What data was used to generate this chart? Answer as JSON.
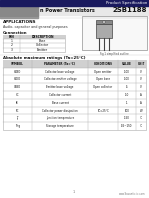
{
  "title_right": "Product Specification",
  "part_number": "2SB1188",
  "applications_title": "APPLICATIONS",
  "applications_text": "Audio, capacitor and general purposes",
  "pin_table_title": "Connection",
  "pin_headers": [
    "PIN",
    "DESCRIPTION"
  ],
  "pin_rows": [
    [
      "1",
      "Base"
    ],
    [
      "2",
      "Collector"
    ],
    [
      "3",
      "Emitter"
    ]
  ],
  "abs_table_title": "Absolute maximum ratings (Ta=25°C)",
  "abs_headers": [
    "SYMBOL",
    "PARAMETER (Ta=°C)",
    "CONDITIONS",
    "VALUE",
    "UNIT"
  ],
  "abs_rows": [
    [
      "VCBO",
      "Collector-base voltage",
      "Open emitter",
      "-100",
      "V"
    ],
    [
      "VCEO",
      "Collector-emitter voltage",
      "Open base",
      "-100",
      "V"
    ],
    [
      "VEBO",
      "Emitter-base voltage",
      "Open collector",
      "-5",
      "V"
    ],
    [
      "IC",
      "Collector current",
      "",
      "-10",
      "A"
    ],
    [
      "IB",
      "Base current",
      "",
      "-1",
      "A"
    ],
    [
      "PC",
      "Collector power dissipation",
      "TC=25°C",
      "100",
      "W"
    ],
    [
      "TJ",
      "Junction temperature",
      "",
      "-150",
      "°C"
    ],
    [
      "Tstg",
      "Storage temperature",
      "",
      "-55~150",
      "°C"
    ]
  ],
  "bg_color": "#ffffff",
  "table_line_color": "#aaaaaa",
  "header_bg": "#d0d0d0",
  "top_bar_color": "#1a1a5e",
  "subtitle_bar_color": "#e8e8e8",
  "gray_tri_color": "#888888",
  "footer_text": "www.Savantic-ic.com",
  "fig_caption": "Fig.1 simplified outline"
}
